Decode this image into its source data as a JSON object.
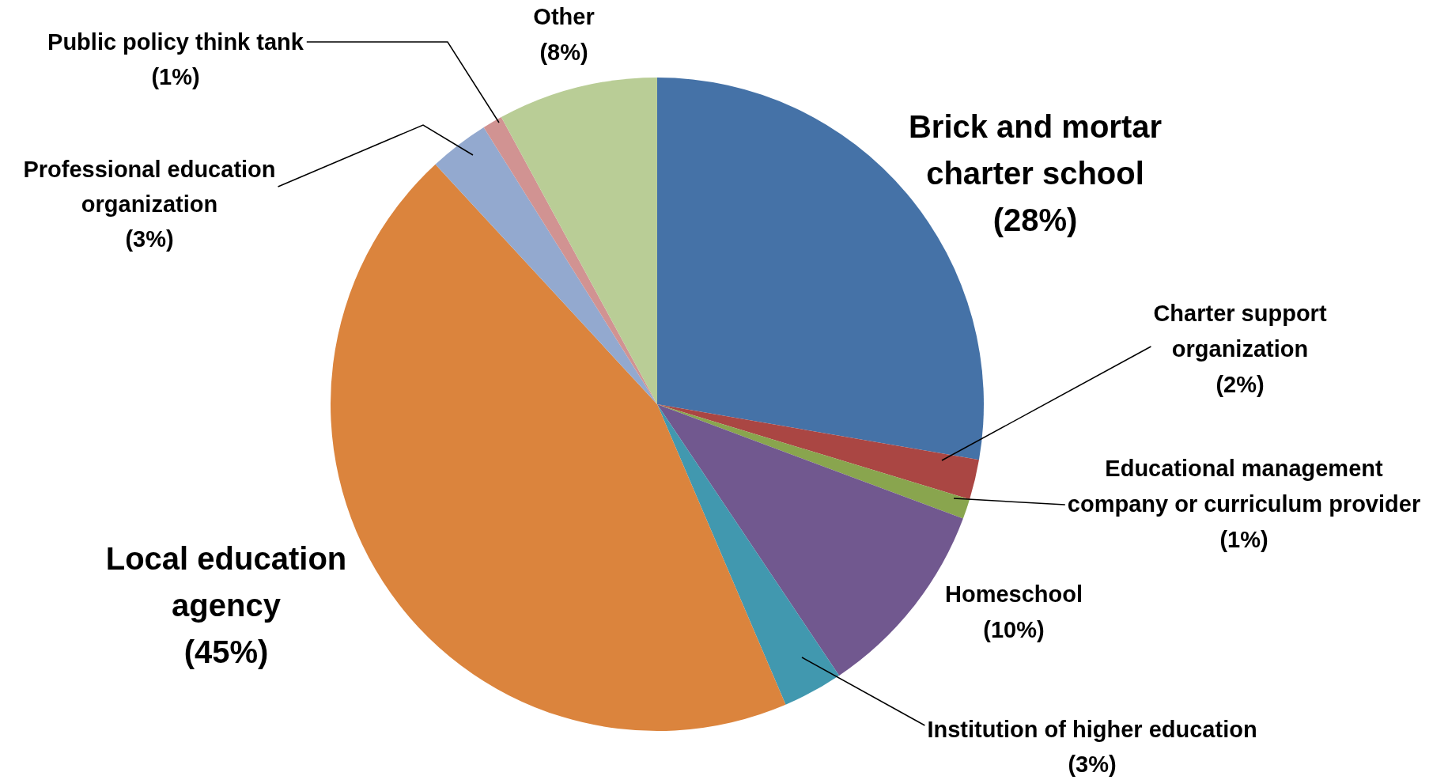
{
  "chart_data": {
    "type": "pie",
    "categories": [
      "Brick and mortar charter school",
      "Charter support organization",
      "Educational management company or curriculum provider",
      "Homeschool",
      "Institution of higher education",
      "Local education agency",
      "Professional education organization",
      "Public policy think tank",
      "Other"
    ],
    "values": [
      28,
      2,
      1,
      10,
      3,
      45,
      3,
      1,
      8
    ],
    "value_labels": [
      "(28%)",
      "(2%)",
      "(1%)",
      "(10%)",
      "(3%)",
      "(45%)",
      "(3%)",
      "(1%)",
      "(8%)"
    ],
    "colors": [
      "#4572a7",
      "#aa4643",
      "#89a54e",
      "#71588f",
      "#4198af",
      "#db843d",
      "#93a9cf",
      "#d19392",
      "#b9cd96"
    ],
    "legend": false
  }
}
